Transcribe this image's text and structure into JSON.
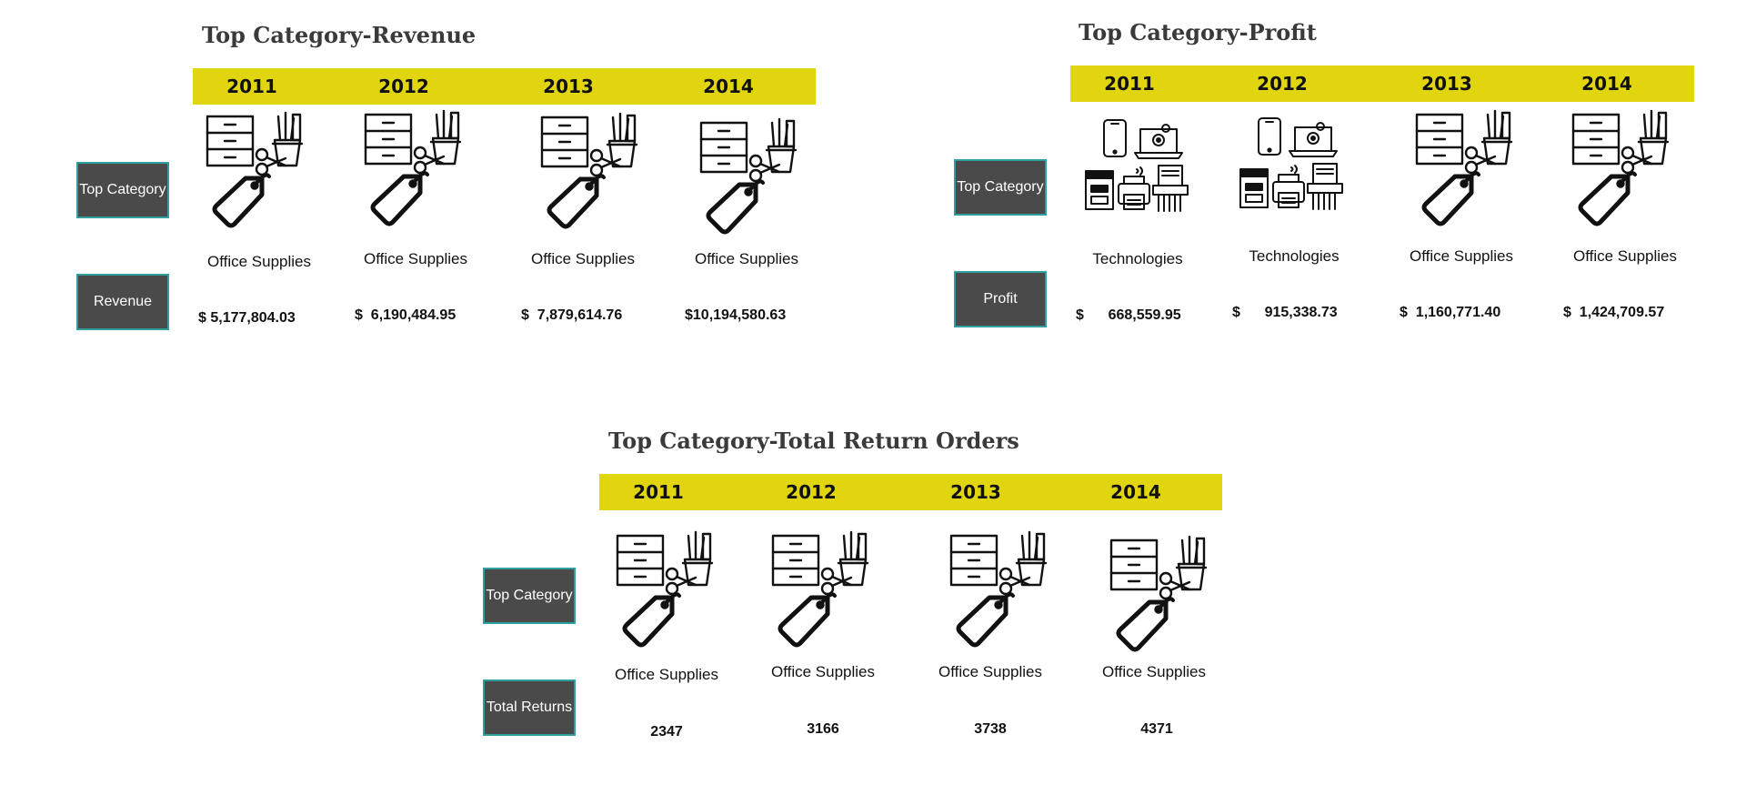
{
  "colors": {
    "year_bar": "#e1d510",
    "label_box": "#4a4a4a",
    "label_border": "#2f9e9e",
    "title": "#3a3a3a"
  },
  "revenue": {
    "title": "Top Category-Revenue",
    "years": [
      "2011",
      "2012",
      "2013",
      "2014"
    ],
    "row_label_category": "Top Category",
    "row_label_value": "Revenue",
    "items": [
      {
        "category": "Office Supplies",
        "value": "$ 5,177,804.03",
        "icon": "office-supplies-icon"
      },
      {
        "category": "Office Supplies",
        "value": "$  6,190,484.95",
        "icon": "office-supplies-icon"
      },
      {
        "category": "Office Supplies",
        "value": "$  7,879,614.76",
        "icon": "office-supplies-icon"
      },
      {
        "category": "Office Supplies",
        "value": "$10,194,580.63",
        "icon": "office-supplies-icon"
      }
    ]
  },
  "profit": {
    "title": "Top Category-Profit",
    "years": [
      "2011",
      "2012",
      "2013",
      "2014"
    ],
    "row_label_category": "Top Category",
    "row_label_value": "Profit",
    "items": [
      {
        "category": "Technologies",
        "value": "$      668,559.95",
        "icon": "technology-icon"
      },
      {
        "category": "Technologies",
        "value": "$      915,338.73",
        "icon": "technology-icon"
      },
      {
        "category": "Office Supplies",
        "value": "$  1,160,771.40",
        "icon": "office-supplies-icon"
      },
      {
        "category": "Office Supplies",
        "value": "$  1,424,709.57",
        "icon": "office-supplies-icon"
      }
    ]
  },
  "returns": {
    "title": "Top Category-Total Return Orders",
    "years": [
      "2011",
      "2012",
      "2013",
      "2014"
    ],
    "row_label_category": "Top Category",
    "row_label_value": "Total Returns",
    "items": [
      {
        "category": "Office Supplies",
        "value": "2347",
        "icon": "office-supplies-icon"
      },
      {
        "category": "Office Supplies",
        "value": "3166",
        "icon": "office-supplies-icon"
      },
      {
        "category": "Office Supplies",
        "value": "3738",
        "icon": "office-supplies-icon"
      },
      {
        "category": "Office Supplies",
        "value": "4371",
        "icon": "office-supplies-icon"
      }
    ]
  }
}
